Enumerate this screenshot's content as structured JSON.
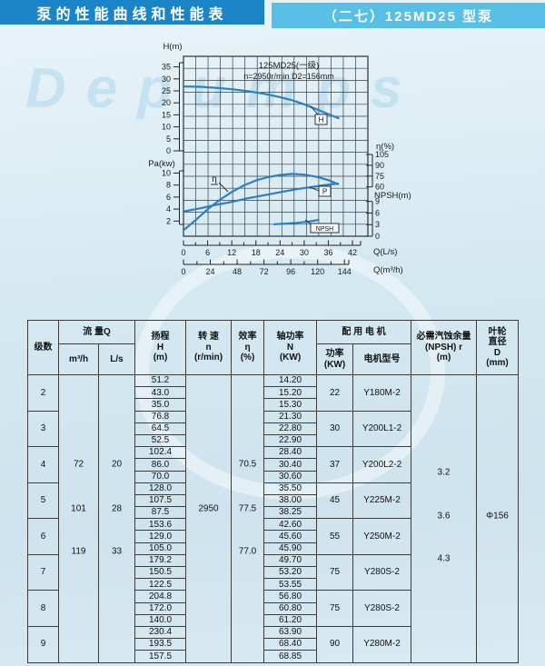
{
  "page_title": {
    "left": "泵的性能曲线和性能表",
    "right": "（二七）125MD25 型泵"
  },
  "chart_data": {
    "type": "line",
    "title": "125MD25(一级)",
    "subtitle": "n=2950r/min  D2=156mm",
    "legend_position": "on-curve-labels",
    "grid": "on",
    "axes": {
      "h": {
        "label": "H(m)",
        "ticks": [
          0,
          5,
          10,
          15,
          20,
          25,
          30,
          35
        ],
        "range": [
          0,
          35
        ]
      },
      "pa": {
        "label": "Pa(kw)",
        "ticks": [
          2,
          4,
          6,
          8,
          10
        ],
        "range": [
          0,
          10
        ]
      },
      "eta": {
        "label": "η(%)",
        "ticks": [
          60,
          75,
          90,
          105
        ],
        "range": [
          60,
          105
        ]
      },
      "npsh": {
        "label": "NPSH(m)",
        "ticks": [
          0,
          3,
          6,
          9
        ],
        "range": [
          0,
          9
        ]
      },
      "q_ls": {
        "label": "Q(L/s)",
        "ticks": [
          0,
          6,
          12,
          18,
          24,
          30,
          36,
          42
        ],
        "range": [
          0,
          45
        ]
      },
      "q_m3h": {
        "label": "Q(m³/h)",
        "ticks": [
          0,
          24,
          48,
          72,
          96,
          120,
          144
        ],
        "range": [
          0,
          152
        ]
      }
    },
    "series": [
      {
        "name": "H",
        "axis": "h",
        "points": [
          [
            0,
            26.8
          ],
          [
            4,
            26.7
          ],
          [
            8,
            26.3
          ],
          [
            12,
            25.7
          ],
          [
            16,
            24.9
          ],
          [
            20,
            23.8
          ],
          [
            24,
            22.4
          ],
          [
            27,
            21.1
          ],
          [
            30,
            19.4
          ],
          [
            33,
            17.4
          ],
          [
            36,
            15.3
          ],
          [
            38.5,
            13.6
          ]
        ]
      },
      {
        "name": "η",
        "axis": "eta",
        "points": [
          [
            0,
            0
          ],
          [
            3,
            14
          ],
          [
            6,
            29
          ],
          [
            9,
            42
          ],
          [
            12,
            53
          ],
          [
            15,
            62
          ],
          [
            18,
            69
          ],
          [
            21,
            73.5
          ],
          [
            24,
            76.5
          ],
          [
            27,
            78
          ],
          [
            30,
            77
          ],
          [
            33,
            74
          ],
          [
            36,
            69.5
          ],
          [
            38.4,
            64
          ]
        ]
      },
      {
        "name": "P",
        "axis": "pa",
        "points": [
          [
            0,
            3.6
          ],
          [
            4,
            4.1
          ],
          [
            8,
            4.7
          ],
          [
            12,
            5.2
          ],
          [
            16,
            5.8
          ],
          [
            20,
            6.3
          ],
          [
            24,
            6.8
          ],
          [
            28,
            7.3
          ],
          [
            32,
            7.7
          ],
          [
            35,
            8.0
          ],
          [
            38.4,
            8.25
          ]
        ]
      },
      {
        "name": "NPSH",
        "axis": "npsh",
        "points": [
          [
            22.5,
            3.1
          ],
          [
            25,
            3.25
          ],
          [
            28,
            3.45
          ],
          [
            31,
            3.75
          ],
          [
            33.5,
            4.2
          ]
        ]
      }
    ],
    "curve_color": "#2b7fc2"
  },
  "table": {
    "headers": {
      "stage": "级数",
      "flow": "流 量Q",
      "m3h": "m³/h",
      "ls": "L/s",
      "head": [
        "扬程",
        "H",
        "(m)"
      ],
      "speed": [
        "转 速",
        "n",
        "(r/min)"
      ],
      "eff": [
        "效率",
        "η",
        "(%)"
      ],
      "shaft": [
        "轴功率",
        "N",
        "(KW)"
      ],
      "motor": "配 用 电 机",
      "mkw": [
        "功率",
        "(KW)"
      ],
      "model": "电机型号",
      "npsh": [
        "必需汽蚀余量",
        "(NPSH) r",
        "(m)"
      ],
      "imp": [
        "叶轮",
        "直径",
        "D",
        "(mm)"
      ]
    },
    "rows": [
      {
        "stage": "2",
        "heads": [
          "51.2",
          "43.0",
          "35.0"
        ],
        "powers": [
          "14.20",
          "15.20",
          "15.30"
        ],
        "motor_kw": "22",
        "motor_model": "Y180M-2"
      },
      {
        "stage": "3",
        "heads": [
          "76.8",
          "64.5",
          "52.5"
        ],
        "powers": [
          "21.30",
          "22.80",
          "22.90"
        ],
        "motor_kw": "30",
        "motor_model": "Y200L1-2"
      },
      {
        "stage": "4",
        "heads": [
          "102.4",
          "86.0",
          "70.0"
        ],
        "powers": [
          "28.40",
          "30.40",
          "30.60"
        ],
        "motor_kw": "37",
        "motor_model": "Y200L2-2"
      },
      {
        "stage": "5",
        "heads": [
          "128.0",
          "107.5",
          "87.5"
        ],
        "powers": [
          "35.50",
          "38.00",
          "38.25"
        ],
        "motor_kw": "45",
        "motor_model": "Y225M-2"
      },
      {
        "stage": "6",
        "heads": [
          "153.6",
          "129.0",
          "105.0"
        ],
        "powers": [
          "42.60",
          "45.60",
          "45.90"
        ],
        "motor_kw": "55",
        "motor_model": "Y250M-2"
      },
      {
        "stage": "7",
        "heads": [
          "179.2",
          "150.5",
          "122.5"
        ],
        "powers": [
          "49.70",
          "53.20",
          "53.55"
        ],
        "motor_kw": "75",
        "motor_model": "Y280S-2"
      },
      {
        "stage": "8",
        "heads": [
          "204.8",
          "172.0",
          "140.0"
        ],
        "powers": [
          "56.80",
          "60.80",
          "61.20"
        ],
        "motor_kw": "75",
        "motor_model": "Y280S-2"
      },
      {
        "stage": "9",
        "heads": [
          "230.4",
          "193.5",
          "157.5"
        ],
        "powers": [
          "63.90",
          "68.40",
          "68.85"
        ],
        "motor_kw": "90",
        "motor_model": "Y280M-2"
      }
    ],
    "merged": {
      "flow_m3h": [
        "72",
        "101",
        "119"
      ],
      "flow_ls": [
        "20",
        "28",
        "33"
      ],
      "speed": "2950",
      "efficiency": [
        "70.5",
        "77.5",
        "77.0"
      ],
      "npsh": [
        "3.2",
        "3.6",
        "4.3"
      ],
      "impeller": "Φ156"
    }
  },
  "watermark": "Depumps"
}
